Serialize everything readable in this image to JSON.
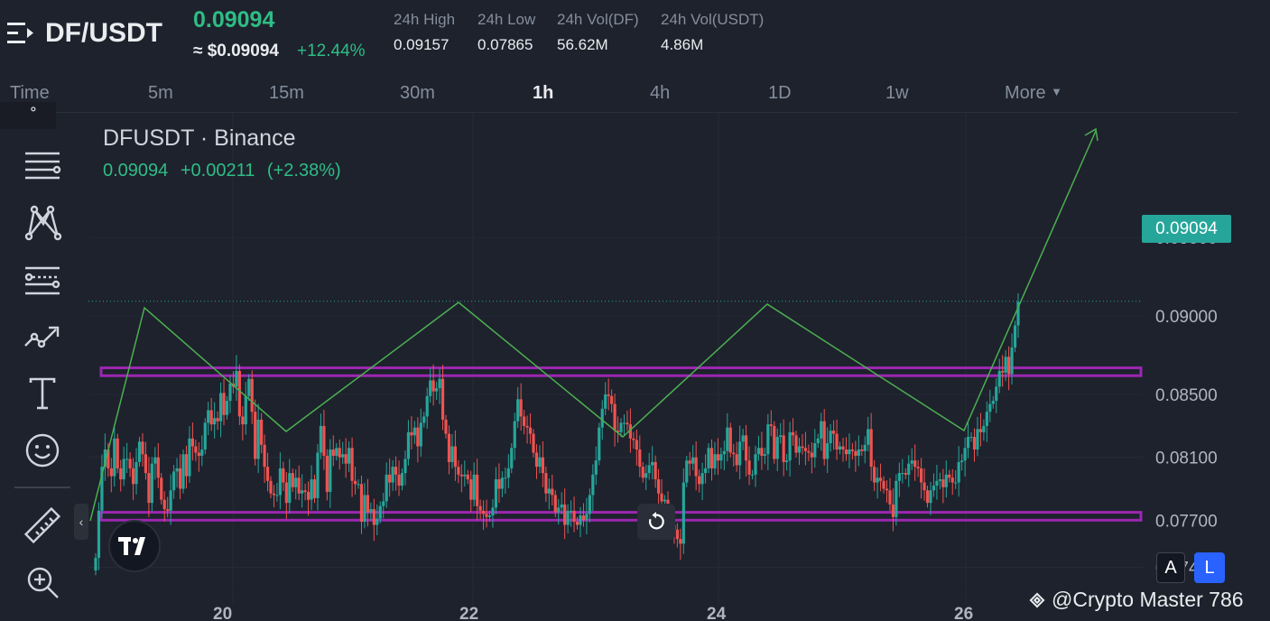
{
  "header": {
    "pair": "DF/USDT",
    "price": "0.09094",
    "price_usd": "≈ $0.09094",
    "change": "+12.44%",
    "stats": [
      {
        "label": "24h High",
        "value": "0.09157"
      },
      {
        "label": "24h Low",
        "value": "0.07865"
      },
      {
        "label": "24h Vol(DF)",
        "value": "56.62M"
      },
      {
        "label": "24h Vol(USDT)",
        "value": "4.86M"
      }
    ]
  },
  "timeframes": [
    "Time",
    "5m",
    "15m",
    "30m",
    "1h",
    "4h",
    "1D",
    "1w",
    "More"
  ],
  "active_timeframe": "1h",
  "legend": {
    "title": "DFUSDT · Binance",
    "last": "0.09094",
    "change": "+0.00211",
    "change_pct": "(+2.38%)"
  },
  "price_tag": "0.09094",
  "buttons": {
    "auto": "A",
    "log": "L"
  },
  "watermark": "@Crypto Master 786",
  "colors": {
    "up": "#26a69a",
    "down": "#ef5350",
    "drawing": "#4caf50",
    "channel": "#9c27b0",
    "background": "#1e222d"
  },
  "tools": [
    "pencil-icon",
    "lines-icon",
    "pattern-icon",
    "fib-icon",
    "trend-icon",
    "text-icon",
    "emoji-icon",
    "ruler-icon",
    "zoom-icon"
  ],
  "chart_data": {
    "type": "candlestick",
    "symbol": "DFUSDT",
    "exchange": "Binance",
    "interval": "1h",
    "x_ticks": [
      "20",
      "22",
      "24",
      "26"
    ],
    "y_ticks": [
      "0.09500",
      "0.09000",
      "0.08500",
      "0.08100",
      "0.07700",
      "0.07400"
    ],
    "y_tick_values": [
      0.095,
      0.09,
      0.085,
      0.081,
      0.077,
      0.074
    ],
    "ylim": [
      0.0715,
      0.0965
    ],
    "last_price": 0.09094,
    "support_zone": [
      0.077,
      0.0775
    ],
    "resistance_zone": [
      0.0862,
      0.0867
    ],
    "closes": [
      0.0746,
      0.0776,
      0.0804,
      0.0815,
      0.0803,
      0.0798,
      0.0822,
      0.0803,
      0.0796,
      0.0809,
      0.0809,
      0.0803,
      0.0793,
      0.0807,
      0.082,
      0.0812,
      0.08,
      0.0781,
      0.0806,
      0.081,
      0.0797,
      0.0783,
      0.0777,
      0.0776,
      0.0789,
      0.0801,
      0.0803,
      0.079,
      0.0812,
      0.0798,
      0.0822,
      0.0817,
      0.0813,
      0.0811,
      0.0815,
      0.0832,
      0.084,
      0.0831,
      0.0835,
      0.0833,
      0.0851,
      0.0837,
      0.0846,
      0.0857,
      0.0855,
      0.0865,
      0.0836,
      0.0831,
      0.0849,
      0.086,
      0.0839,
      0.0809,
      0.0834,
      0.0818,
      0.0804,
      0.0795,
      0.0787,
      0.0786,
      0.0786,
      0.0803,
      0.0794,
      0.0781,
      0.08,
      0.0791,
      0.0797,
      0.0787,
      0.0789,
      0.0788,
      0.0783,
      0.0796,
      0.0784,
      0.0813,
      0.083,
      0.0811,
      0.0788,
      0.0815,
      0.0811,
      0.0816,
      0.081,
      0.0812,
      0.0806,
      0.0816,
      0.0795,
      0.0793,
      0.0793,
      0.0769,
      0.0786,
      0.0775,
      0.0777,
      0.0767,
      0.0771,
      0.0779,
      0.0782,
      0.0799,
      0.0794,
      0.0804,
      0.0799,
      0.0792,
      0.08,
      0.0809,
      0.0826,
      0.0824,
      0.0829,
      0.0817,
      0.0832,
      0.0836,
      0.0849,
      0.0859,
      0.0852,
      0.0854,
      0.086,
      0.0834,
      0.0825,
      0.0807,
      0.0817,
      0.0804,
      0.0799,
      0.0798,
      0.0799,
      0.0796,
      0.0783,
      0.0799,
      0.0779,
      0.0776,
      0.0774,
      0.0772,
      0.0773,
      0.0778,
      0.0796,
      0.079,
      0.0797,
      0.0797,
      0.0803,
      0.0816,
      0.0833,
      0.0847,
      0.0836,
      0.083,
      0.0829,
      0.0825,
      0.0813,
      0.0804,
      0.081,
      0.08,
      0.0787,
      0.079,
      0.0786,
      0.0775,
      0.0778,
      0.078,
      0.0767,
      0.0776,
      0.0776,
      0.0769,
      0.0767,
      0.0773,
      0.077,
      0.0774,
      0.0786,
      0.0799,
      0.0808,
      0.0829,
      0.0841,
      0.085,
      0.0849,
      0.0844,
      0.0827,
      0.0826,
      0.0832,
      0.0832,
      0.0831,
      0.0822,
      0.0821,
      0.0815,
      0.0804,
      0.0797,
      0.08,
      0.0805,
      0.0807,
      0.0796,
      0.0787,
      0.0782,
      0.0783,
      0.0768,
      0.0767,
      0.0764,
      0.0758,
      0.0755,
      0.0794,
      0.0808,
      0.0806,
      0.081,
      0.0798,
      0.0793,
      0.08,
      0.0803,
      0.0816,
      0.0803,
      0.0812,
      0.0808,
      0.0812,
      0.0814,
      0.0829,
      0.0813,
      0.0812,
      0.0805,
      0.082,
      0.0824,
      0.0808,
      0.0799,
      0.0799,
      0.0812,
      0.0816,
      0.0811,
      0.0812,
      0.0831,
      0.083,
      0.0809,
      0.0823,
      0.0824,
      0.0807,
      0.0808,
      0.0826,
      0.0824,
      0.0813,
      0.0817,
      0.0816,
      0.0814,
      0.0813,
      0.081,
      0.0819,
      0.0822,
      0.0833,
      0.0809,
      0.0819,
      0.0827,
      0.0825,
      0.0815,
      0.0817,
      0.0815,
      0.0812,
      0.0815,
      0.0814,
      0.0811,
      0.0815,
      0.0814,
      0.0818,
      0.0828,
      0.0804,
      0.0794,
      0.0797,
      0.0795,
      0.079,
      0.0789,
      0.078,
      0.0772,
      0.0795,
      0.08,
      0.08,
      0.0799,
      0.0806,
      0.0808,
      0.0804,
      0.0803,
      0.0794,
      0.0789,
      0.0781,
      0.0789,
      0.0792,
      0.0795,
      0.0796,
      0.0791,
      0.0799,
      0.0797,
      0.0794,
      0.0794,
      0.0807,
      0.0808,
      0.0816,
      0.0823,
      0.0823,
      0.0815,
      0.0828,
      0.0826,
      0.083,
      0.0839,
      0.0844,
      0.0846,
      0.0855,
      0.0865,
      0.0864,
      0.0874,
      0.0863,
      0.088,
      0.0894,
      0.0909
    ]
  }
}
